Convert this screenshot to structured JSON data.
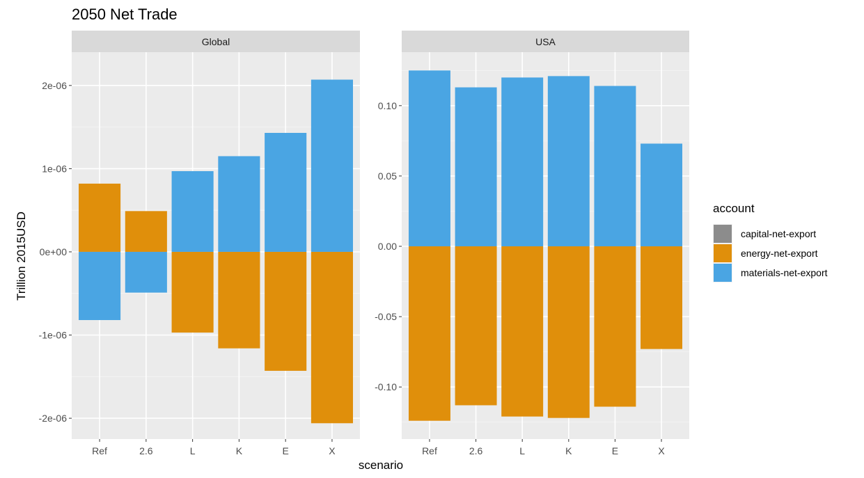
{
  "chart_data": {
    "type": "bar",
    "stacked": true,
    "title": "2050 Net Trade",
    "xlabel": "scenario",
    "ylabel": "Trillion 2015USD",
    "categories": [
      "Ref",
      "2.6",
      "L",
      "K",
      "E",
      "X"
    ],
    "legend": {
      "title": "account",
      "position": "right",
      "entries": [
        {
          "name": "capital-net-export",
          "color": "#8c8c8c"
        },
        {
          "name": "energy-net-export",
          "color": "#e08f0b"
        },
        {
          "name": "materials-net-export",
          "color": "#4aa5e3"
        }
      ]
    },
    "panels": [
      {
        "label": "Global",
        "ylim": [
          -2.25e-06,
          2.4e-06
        ],
        "yticks": [
          -2e-06,
          -1e-06,
          0,
          1e-06,
          2e-06
        ],
        "ytick_labels": [
          "-2e-06",
          "-1e-06",
          "0e+00",
          "1e-06",
          "2e-06"
        ],
        "series": [
          {
            "name": "capital-net-export",
            "values": [
              0,
              0,
              0,
              0,
              0,
              0
            ]
          },
          {
            "name": "energy-net-export",
            "values": [
              8.2e-07,
              4.9e-07,
              -9.7e-07,
              -1.16e-06,
              -1.43e-06,
              -2.06e-06
            ]
          },
          {
            "name": "materials-net-export",
            "values": [
              -8.2e-07,
              -4.9e-07,
              9.7e-07,
              1.15e-06,
              1.43e-06,
              2.07e-06
            ]
          }
        ]
      },
      {
        "label": "USA",
        "ylim": [
          -0.137,
          0.138
        ],
        "yticks": [
          -0.1,
          -0.05,
          0,
          0.05,
          0.1
        ],
        "ytick_labels": [
          "-0.10",
          "-0.05",
          "0.00",
          "0.05",
          "0.10"
        ],
        "series": [
          {
            "name": "capital-net-export",
            "values": [
              0,
              0,
              0,
              0,
              0,
              0
            ]
          },
          {
            "name": "energy-net-export",
            "values": [
              -0.124,
              -0.113,
              -0.121,
              -0.122,
              -0.114,
              -0.073
            ]
          },
          {
            "name": "materials-net-export",
            "values": [
              0.125,
              0.113,
              0.12,
              0.121,
              0.114,
              0.073
            ]
          }
        ]
      }
    ]
  }
}
